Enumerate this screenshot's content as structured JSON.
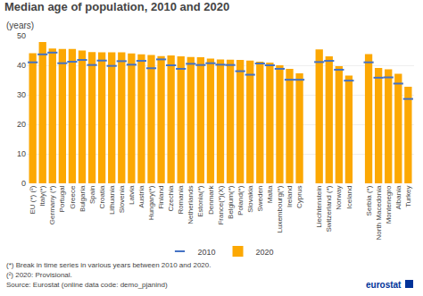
{
  "chart_data": {
    "type": "bar",
    "title": "Median age of population, 2010 and 2020",
    "subtitle": "(years)",
    "categories": [
      "EU (*) (²)",
      "Italy(*)",
      "Germany (*)",
      "Portugal",
      "Greece",
      "Bulgaria",
      "Spain",
      "Croatia",
      "Lithuania",
      "Slovenia",
      "Latvia",
      "Austria",
      "Hungary(*)",
      "Finland",
      "Czechia",
      "Romania",
      "Netherlands",
      "Estonia(*)",
      "Denmark",
      "France(*)(X)",
      "Belgium(*)",
      "Poland(*)",
      "Slovakia",
      "Sweden",
      "Malta",
      "Luxembourg(*)",
      "Ireland",
      "Cyprus",
      null,
      "Liechtenstein",
      "Switzerland (*)",
      "Norway",
      "Iceland",
      null,
      "Serbia (*)",
      "North Macedonia",
      "Montenegro",
      "Albania",
      "Turkey"
    ],
    "series": [
      {
        "name": "2010",
        "type": "scatter",
        "marker": "dash",
        "color": "#4472C4",
        "values": [
          41.0,
          43.7,
          44.3,
          40.7,
          41.2,
          41.8,
          40.1,
          41.6,
          39.8,
          41.4,
          40.2,
          41.5,
          39.0,
          42.0,
          40.0,
          38.8,
          40.5,
          40.1,
          40.7,
          40.2,
          40.1,
          38.0,
          36.8,
          40.6,
          40.0,
          38.8,
          35.1,
          35.1,
          null,
          41.1,
          41.5,
          38.5,
          34.8,
          null,
          41.0,
          35.8,
          35.9,
          33.8,
          28.6
        ]
      },
      {
        "name": "2020",
        "type": "bar",
        "color": "#FCA803",
        "values": [
          44.1,
          47.9,
          45.7,
          45.5,
          45.5,
          45.0,
          44.5,
          44.4,
          44.4,
          44.4,
          44.0,
          43.7,
          43.5,
          43.1,
          43.3,
          43.0,
          42.8,
          42.7,
          42.3,
          42.0,
          41.9,
          41.8,
          41.6,
          41.2,
          40.9,
          40.0,
          38.8,
          37.3,
          null,
          45.4,
          43.0,
          39.7,
          36.5,
          null,
          43.8,
          39.1,
          38.6,
          37.1,
          32.7
        ]
      }
    ],
    "ylim": [
      0,
      50
    ],
    "yticks": [
      0,
      10,
      20,
      30,
      40,
      50
    ],
    "grid": true,
    "legend": "bottom",
    "footnotes": [
      "(*) Break in time series in various years between 2010 and 2020.",
      "(²) 2020: Provisional."
    ],
    "source": "Source: Eurostat (online data code: demo_pjanind)",
    "annotations": [
      {
        "text": "eurostat",
        "color": "#003399"
      }
    ]
  }
}
